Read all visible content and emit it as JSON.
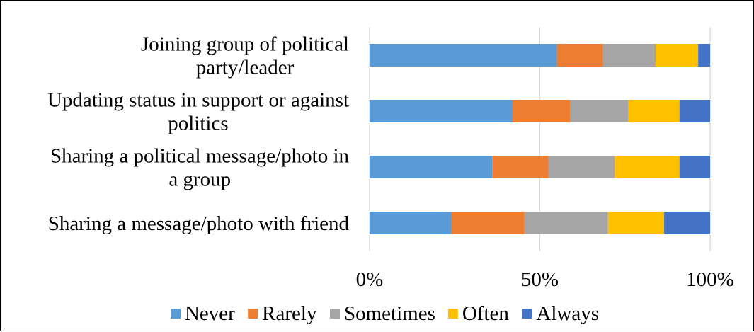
{
  "chart_data": {
    "type": "bar",
    "orientation": "horizontal",
    "stacking": "percent",
    "categories": [
      [
        "Joining group of political",
        "party/leader"
      ],
      [
        "Updating status in support or against",
        "politics"
      ],
      [
        "Sharing a political message/photo in",
        "a group"
      ],
      [
        "Sharing a message/photo with friend"
      ]
    ],
    "series": [
      {
        "name": "Never",
        "color": "#5b9bd5",
        "values": [
          55,
          42,
          36,
          24
        ]
      },
      {
        "name": "Rarely",
        "color": "#ed7d31",
        "values": [
          13.5,
          17,
          16.5,
          21.5
        ]
      },
      {
        "name": "Sometimes",
        "color": "#a5a5a5",
        "values": [
          15.5,
          17,
          19.5,
          24.5
        ]
      },
      {
        "name": "Often",
        "color": "#ffc000",
        "values": [
          12.5,
          15,
          19,
          16.5
        ]
      },
      {
        "name": "Always",
        "color": "#4472c4",
        "values": [
          3.5,
          9,
          9,
          13.5
        ]
      }
    ],
    "x_ticks": [
      "0%",
      "50%",
      "100%"
    ],
    "xlim": [
      0,
      100
    ],
    "grid": "vertical",
    "legend_position": "bottom",
    "title": "",
    "xlabel": "",
    "ylabel": ""
  }
}
